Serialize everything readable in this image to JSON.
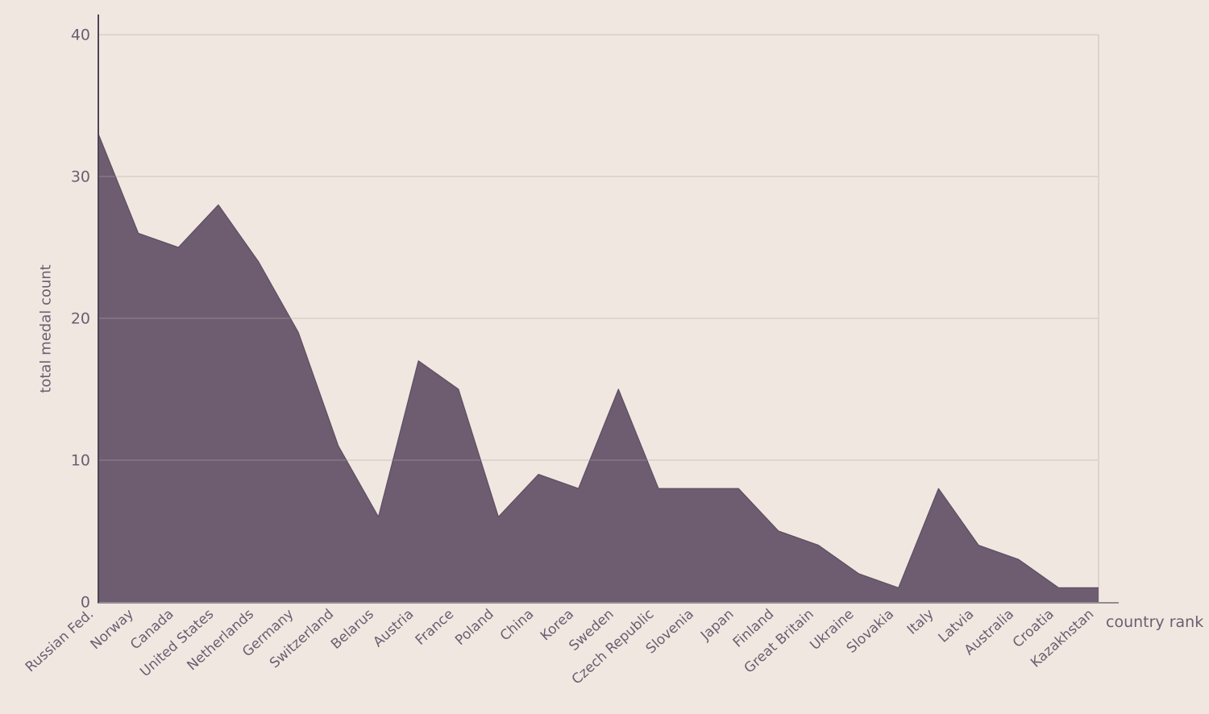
{
  "style": {
    "background": "#f0e8e0",
    "area_fill": "#6e5d70",
    "area_edge": "#5e4e63",
    "grid_color": "#d7d0c9",
    "grid_over_area": "rgba(255,255,255,0.17)",
    "axis_line": "#4e4457",
    "baseline_line": "rgba(73,62,80,0.55)",
    "text_color": "#6d5c72"
  },
  "chart_data": {
    "type": "area",
    "title": "",
    "xlabel": "country rank",
    "ylabel": "total medal count",
    "categories": [
      "Russian Fed.",
      "Norway",
      "Canada",
      "United States",
      "Netherlands",
      "Germany",
      "Switzerland",
      "Belarus",
      "Austria",
      "France",
      "Poland",
      "China",
      "Korea",
      "Sweden",
      "Czech Republic",
      "Slovenia",
      "Japan",
      "Finland",
      "Great Britain",
      "Ukraine",
      "Slovakia",
      "Italy",
      "Latvia",
      "Australia",
      "Croatia",
      "Kazakhstan"
    ],
    "values": [
      33,
      26,
      25,
      28,
      24,
      19,
      11,
      6,
      17,
      15,
      6,
      9,
      8,
      15,
      8,
      8,
      8,
      5,
      4,
      2,
      1,
      8,
      4,
      3,
      1,
      1
    ],
    "series_name": "total medal count",
    "ylim": [
      0,
      40
    ],
    "yticks": [
      0,
      10,
      20,
      30,
      40
    ],
    "grid": true,
    "legend_position": "none",
    "x_tick_rotation_deg": -42
  }
}
